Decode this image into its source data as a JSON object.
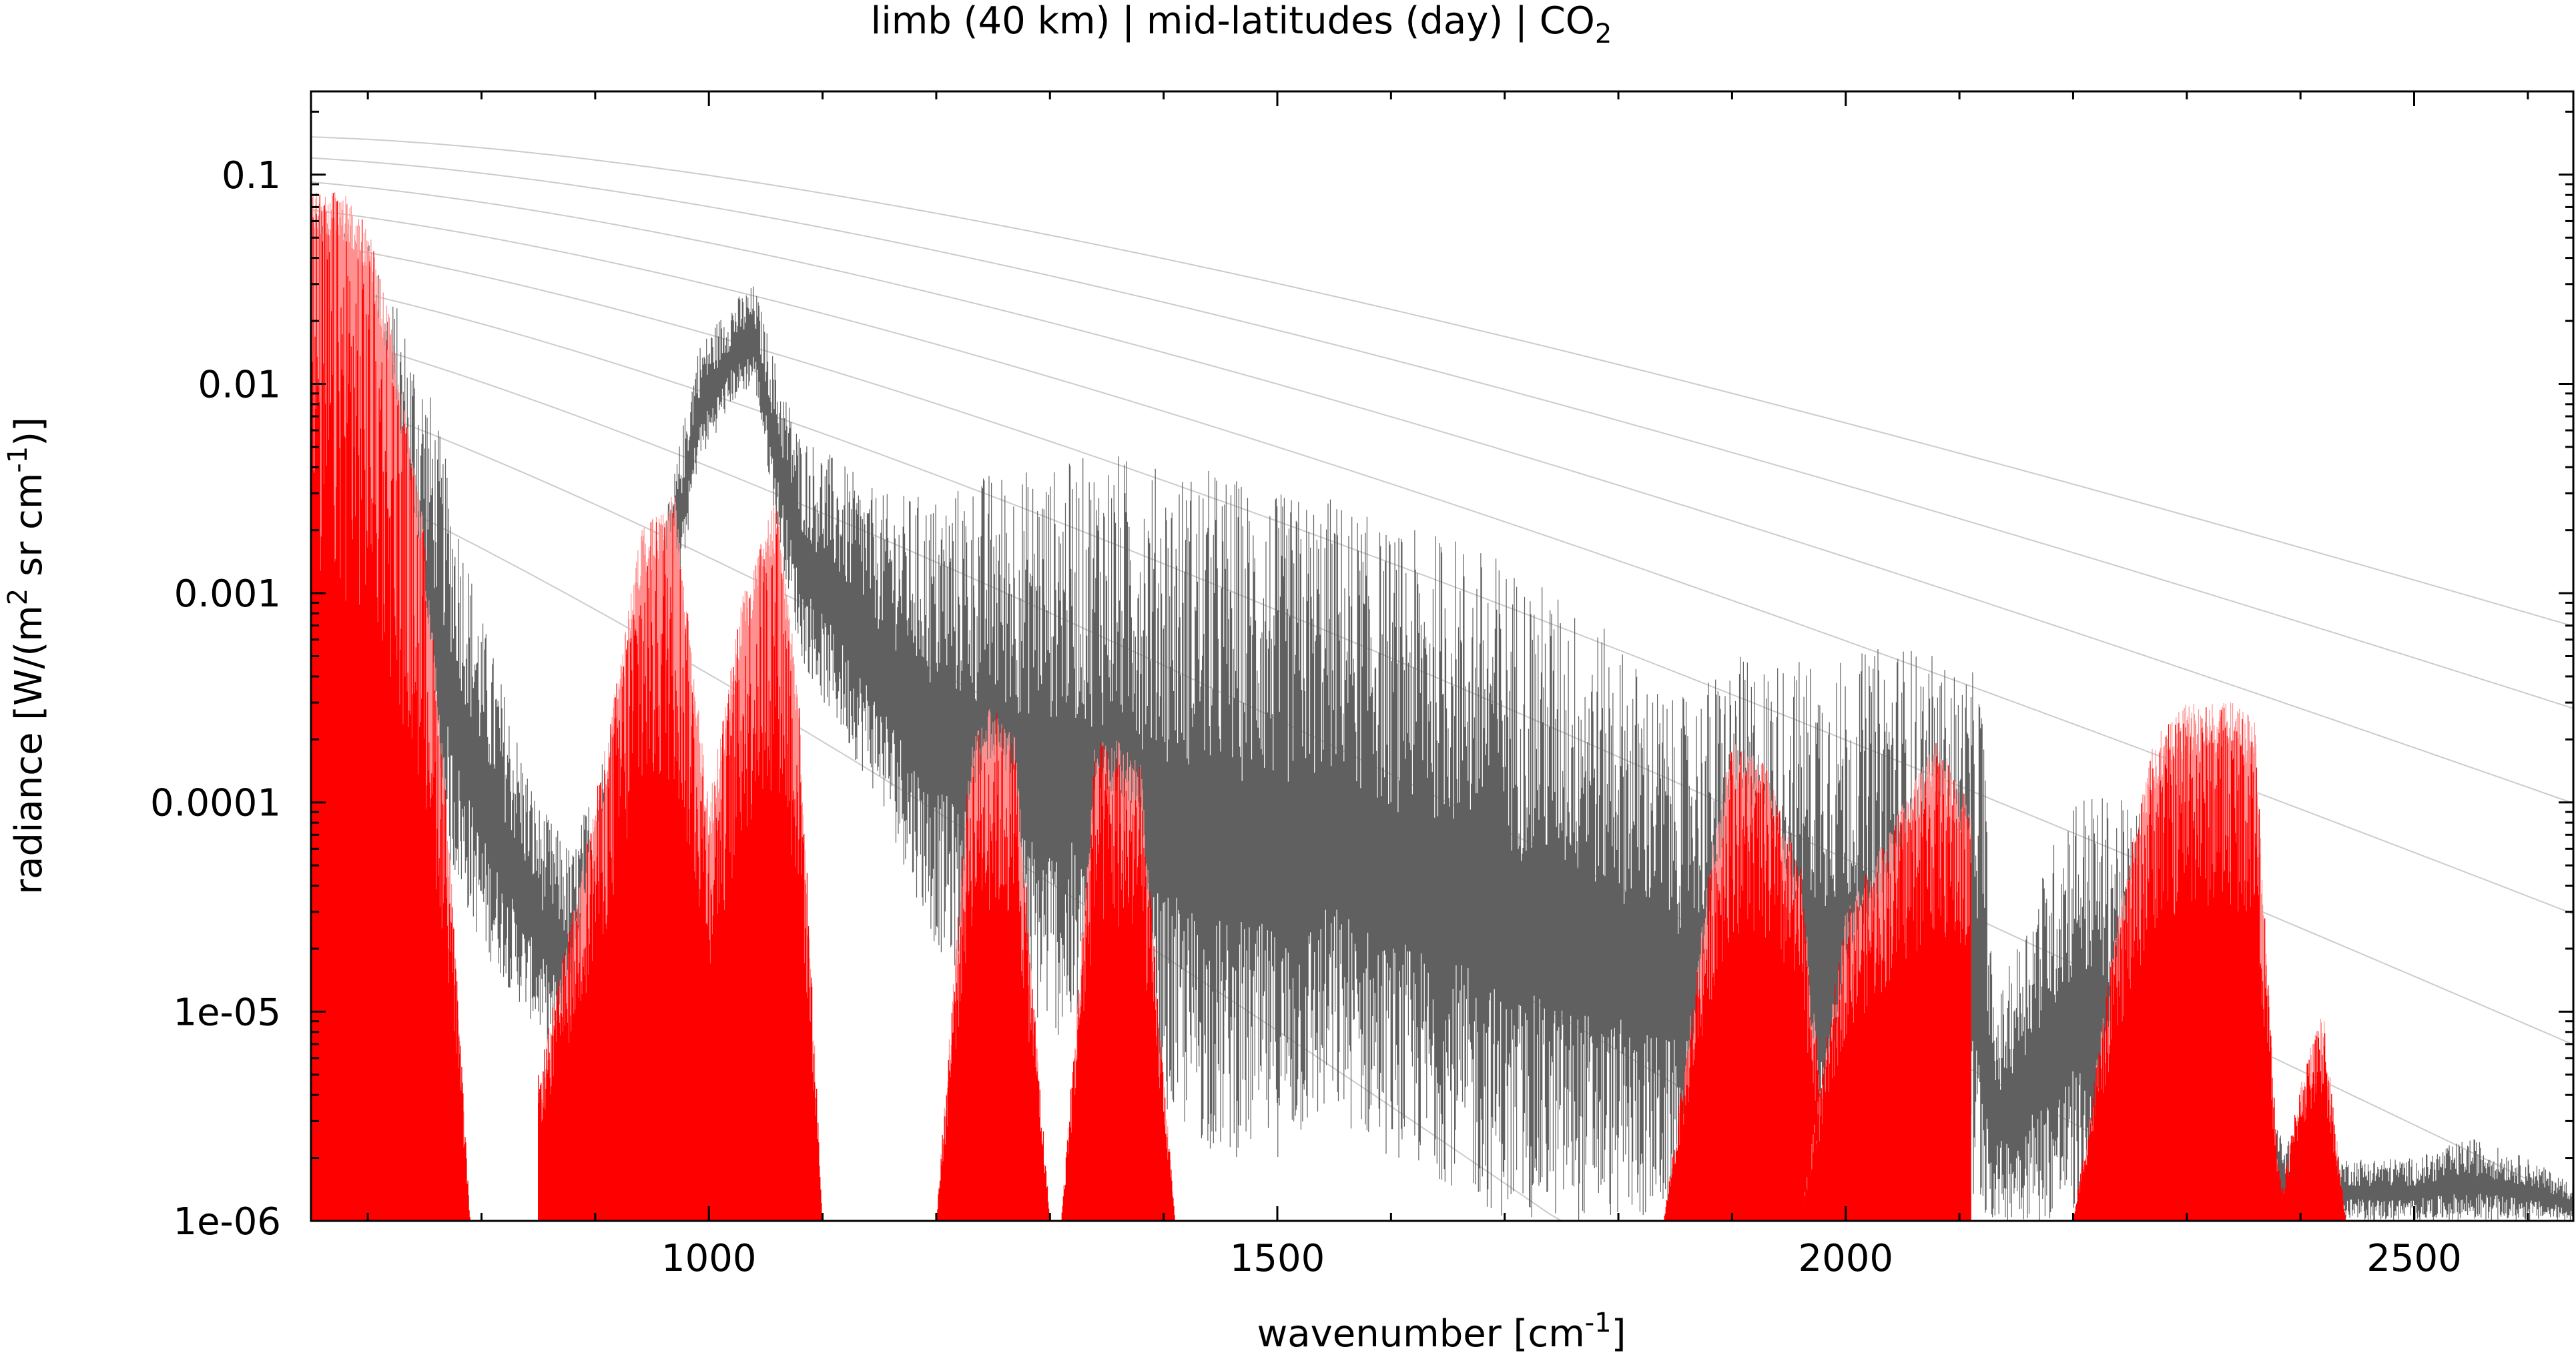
{
  "chart_data": {
    "type": "line",
    "title": "limb (40 km) | mid-latitudes (day) | CO",
    "title_subscript": "2",
    "xlabel": "wavenumber [cm",
    "xlabel_sup": "-1",
    "xlabel_end": "]",
    "ylabel": "radiance [W/(m",
    "ylabel_sup1": "2",
    "ylabel_mid": " sr cm",
    "ylabel_sup2": "-1",
    "ylabel_end": ")]",
    "xlim": [
      650,
      2640
    ],
    "ylim": [
      1e-06,
      0.25
    ],
    "yscale": "log",
    "grid": false,
    "x_ticks": [
      1000,
      1500,
      2000,
      2500
    ],
    "x_tick_labels": [
      "1000",
      "1500",
      "2000",
      "2500"
    ],
    "y_ticks": [
      1e-06,
      1e-05,
      0.0001,
      0.001,
      0.01,
      0.1
    ],
    "y_tick_labels": [
      "1e-06",
      "1e-05",
      "0.0001",
      "0.001",
      "0.01",
      "0.1"
    ],
    "series_colors": {
      "gray_spectrum": "#606060",
      "red_spectrum": "#ff0000",
      "red_light": "#ff9090",
      "planck_curves": "#cccccc"
    },
    "planck_reference_temperatures_K": [
      300,
      280,
      260,
      240,
      220,
      200,
      180,
      160,
      140
    ],
    "series": [
      {
        "style": "gray_spectrum",
        "envelope_x": [
          650,
          700,
          750,
          800,
          850,
          880,
          920,
          960,
          990,
          1020,
          1040,
          1060,
          1080,
          1100,
          1150,
          1200,
          1250,
          1300,
          1350,
          1400,
          1450,
          1500,
          1550,
          1600,
          1650,
          1700,
          1750,
          1800,
          1850,
          1900,
          1950,
          2000,
          2050,
          2080,
          2120,
          2130,
          2160,
          2200,
          2250,
          2300,
          2350,
          2400,
          2450,
          2500,
          2550,
          2600,
          2640
        ],
        "envelope_max": [
          0.08,
          0.05,
          0.012,
          0.0008,
          0.0001,
          6e-05,
          0.0003,
          0.002,
          0.015,
          0.025,
          0.03,
          0.012,
          0.006,
          0.005,
          0.003,
          0.003,
          0.004,
          0.004,
          0.005,
          0.004,
          0.004,
          0.003,
          0.003,
          0.002,
          0.002,
          0.0015,
          0.001,
          0.0006,
          0.0003,
          0.0005,
          0.0005,
          0.0005,
          0.0006,
          0.0005,
          0.0004,
          1e-05,
          3e-05,
          0.00012,
          0.0001,
          0.0001,
          5e-06,
          2e-06,
          2e-06,
          2e-06,
          2.5e-06,
          2e-06,
          1.5e-06
        ],
        "envelope_min": [
          0.005,
          0.001,
          0.0001,
          2e-05,
          8e-06,
          5e-06,
          3e-05,
          0.0003,
          0.004,
          0.008,
          0.01,
          0.002,
          0.0005,
          0.0003,
          0.0001,
          2e-05,
          1e-05,
          8e-06,
          5e-06,
          3e-06,
          2e-06,
          2e-06,
          3e-06,
          2e-06,
          1.5e-06,
          1e-06,
          1e-06,
          1e-06,
          1e-06,
          1e-06,
          1e-06,
          1e-06,
          1e-06,
          1e-06,
          1e-06,
          1e-06,
          1e-06,
          1e-06,
          1e-06,
          1e-06,
          1e-06,
          1e-06,
          1e-06,
          1e-06,
          1e-06,
          1e-06,
          1e-06
        ]
      },
      {
        "style": "red_spectrum",
        "bands": [
          {
            "x": [
              650,
              680,
              700,
              720,
              750,
              770,
              790
            ],
            "max": [
              0.09,
              0.085,
              0.06,
              0.02,
              0.002,
              0.0001,
              1e-06
            ]
          },
          {
            "x": [
              850,
              880,
              910,
              940,
              970,
              1000,
              1030,
              1060,
              1080,
              1100
            ],
            "max": [
              5e-06,
              3e-05,
              0.0002,
              0.002,
              0.003,
              0.0001,
              0.001,
              0.003,
              0.0003,
              1e-06
            ]
          },
          {
            "x": [
              1200,
              1230,
              1250,
              1270,
              1300
            ],
            "max": [
              1e-06,
              0.0002,
              0.0003,
              0.0002,
              1e-06
            ]
          },
          {
            "x": [
              1310,
              1340,
              1360,
              1380,
              1410
            ],
            "max": [
              1e-06,
              0.0002,
              0.0002,
              0.00015,
              1e-06
            ]
          },
          {
            "x": [
              1840,
              1880,
              1900,
              1930,
              1960,
              1990
            ],
            "max": [
              1e-06,
              5e-05,
              0.0002,
              0.00015,
              5e-05,
              1e-06
            ]
          },
          {
            "x": [
              1960,
              2000,
              2050,
              2080,
              2110
            ],
            "max": [
              1e-06,
              3e-05,
              0.0001,
              0.0002,
              0.0001
            ]
          },
          {
            "x": [
              2200,
              2240,
              2270,
              2300,
              2340,
              2360,
              2370,
              2380,
              2390
            ],
            "max": [
              1e-06,
              3e-05,
              0.0002,
              0.0003,
              0.0003,
              0.00025,
              2e-05,
              2e-06,
              1e-06
            ]
          },
          {
            "x": [
              2380,
              2400,
              2420,
              2440
            ],
            "max": [
              1e-06,
              5e-06,
              1e-05,
              1e-06
            ]
          }
        ]
      }
    ]
  }
}
